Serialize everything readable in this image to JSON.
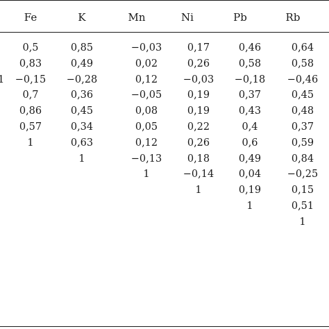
{
  "table": {
    "headers": [
      "Fe",
      "K",
      "Mn",
      "Ni",
      "Pb",
      "Rb"
    ],
    "row_labels": [
      "",
      "",
      "1",
      "",
      "",
      "",
      "",
      "",
      "",
      "",
      "",
      ""
    ],
    "rows": [
      [
        "0,5",
        "0,85",
        "−0,03",
        "0,17",
        "0,46",
        "0,64"
      ],
      [
        "0,83",
        "0,49",
        "0,02",
        "0,26",
        "0,58",
        "0,58"
      ],
      [
        "−0,15",
        "−0,28",
        "0,12",
        "−0,03",
        "−0,18",
        "−0,46"
      ],
      [
        "0,7",
        "0,36",
        "−0,05",
        "0,19",
        "0,37",
        "0,45"
      ],
      [
        "0,86",
        "0,45",
        "0,08",
        "0,19",
        "0,43",
        "0,48"
      ],
      [
        "0,57",
        "0,34",
        "0,05",
        "0,22",
        "0,4",
        "0,37"
      ],
      [
        "1",
        "0,63",
        "0,12",
        "0,26",
        "0,6",
        "0,59"
      ],
      [
        "",
        "1",
        "−0,13",
        "0,18",
        "0,49",
        "0,84"
      ],
      [
        "",
        "",
        "1",
        "−0,14",
        "0,04",
        "−0,25"
      ],
      [
        "",
        "",
        "",
        "1",
        "0,19",
        "0,15"
      ],
      [
        "",
        "",
        "",
        "",
        "1",
        "0,51"
      ],
      [
        "",
        "",
        "",
        "",
        "",
        "1"
      ]
    ]
  }
}
